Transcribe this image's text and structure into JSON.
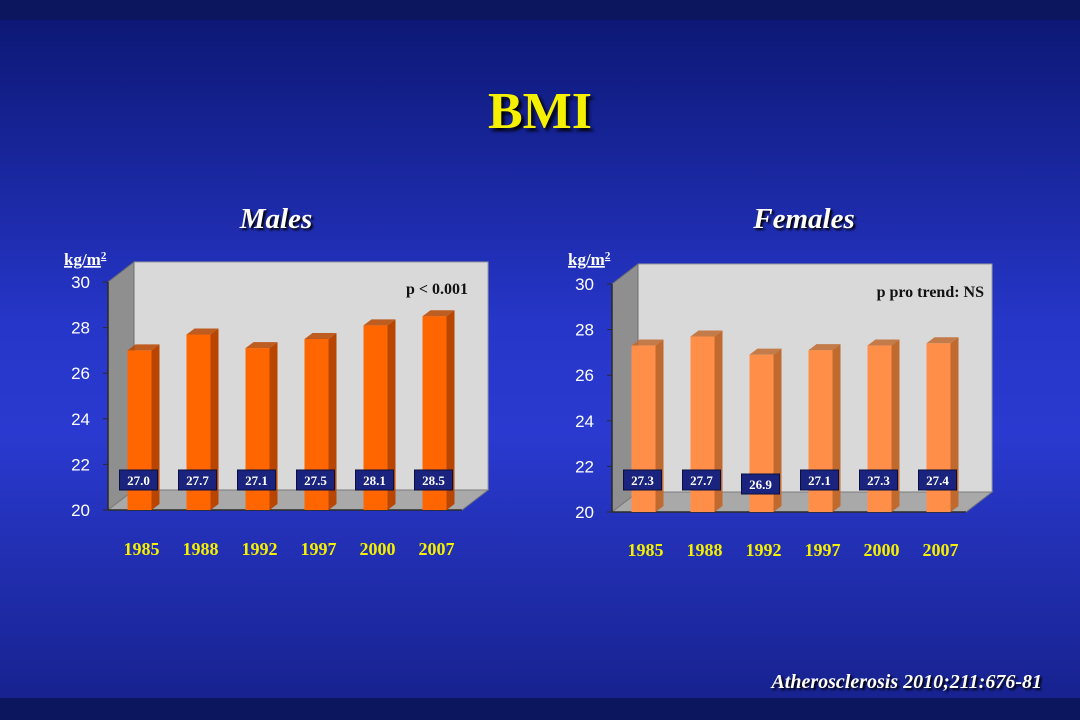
{
  "slide": {
    "title": "BMI",
    "citation": "Atherosclerosis 2010;211:676-81"
  },
  "colors": {
    "males_bar": "#ff6600",
    "males_bar_side": "#b84600",
    "females_bar": "#ff8f48",
    "females_bar_side": "#c06a30",
    "label_box": "#1a237e",
    "year_label": "#f5f000",
    "plot_back": "#d9d9d9"
  },
  "chart_data": [
    {
      "type": "bar",
      "title": "Males",
      "ylabel": "kg/m2",
      "annotation": "p < 0.001",
      "categories": [
        "1985",
        "1988",
        "1992",
        "1997",
        "2000",
        "2007"
      ],
      "values": [
        27.0,
        27.7,
        27.1,
        27.5,
        28.1,
        28.5
      ],
      "value_labels": [
        "27.0",
        "27.7",
        "27.1",
        "27.5",
        "28.1",
        "28.5"
      ],
      "ylim": [
        20,
        30
      ],
      "yticks": [
        "20",
        "22",
        "24",
        "26",
        "28",
        "30"
      ],
      "grid": false,
      "style": "3d"
    },
    {
      "type": "bar",
      "title": "Females",
      "ylabel": "kg/m2",
      "annotation": "p pro trend: NS",
      "categories": [
        "1985",
        "1988",
        "1992",
        "1997",
        "2000",
        "2007"
      ],
      "values": [
        27.3,
        27.7,
        26.9,
        27.1,
        27.3,
        27.4
      ],
      "value_labels": [
        "27.3",
        "27.7",
        "26.9",
        "27.1",
        "27.3",
        "27.4"
      ],
      "ylim": [
        20,
        30
      ],
      "yticks": [
        "20",
        "22",
        "24",
        "26",
        "28",
        "30"
      ],
      "grid": false,
      "style": "3d"
    }
  ]
}
